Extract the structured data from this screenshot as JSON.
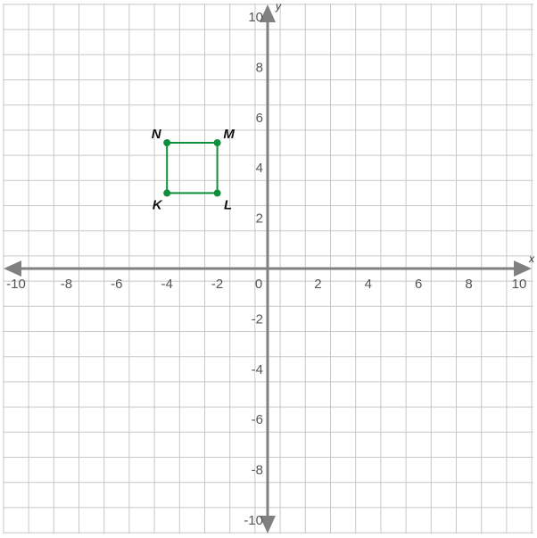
{
  "chart_data": {
    "type": "scatter",
    "xlabel": "x",
    "ylabel": "y",
    "xlim": [
      -10,
      10
    ],
    "ylim": [
      -10,
      10
    ],
    "grid": true,
    "x_tick_labels": [
      "-10",
      "-8",
      "-6",
      "-4",
      "-2",
      "0",
      "2",
      "4",
      "6",
      "8",
      "10"
    ],
    "y_tick_labels": [
      "10",
      "8",
      "6",
      "4",
      "2",
      "-2",
      "-4",
      "-6",
      "-8",
      "-10"
    ],
    "polygon": {
      "color": "#0f8f3c",
      "points": [
        {
          "label": "K",
          "x": -4,
          "y": 3
        },
        {
          "label": "L",
          "x": -2,
          "y": 3
        },
        {
          "label": "M",
          "x": -2,
          "y": 5
        },
        {
          "label": "N",
          "x": -4,
          "y": 5
        }
      ]
    }
  },
  "colors": {
    "grid": "#c8c8c8",
    "axis": "#808080",
    "shape": "#0f8f3c"
  }
}
